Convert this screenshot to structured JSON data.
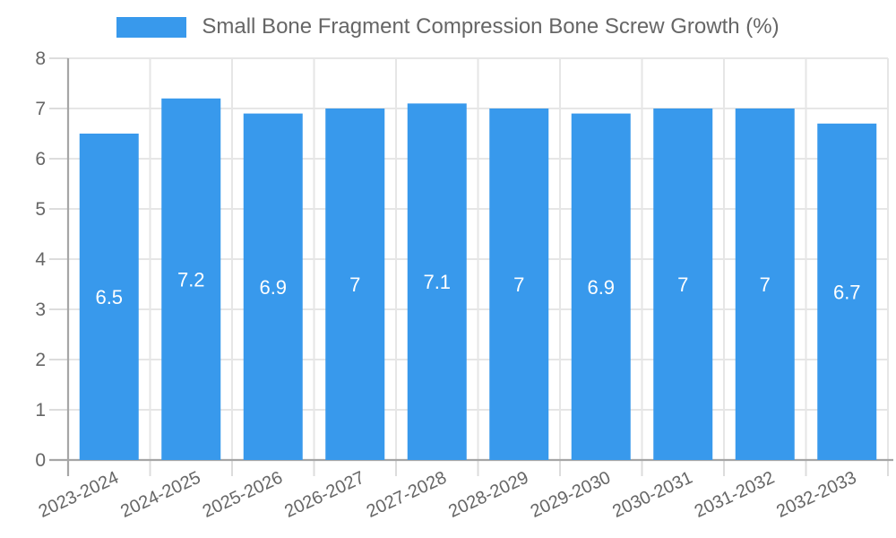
{
  "chart_data": {
    "type": "bar",
    "title": "Small Bone Fragment Compression Bone Screw Growth (%)",
    "legend_position": "top",
    "legend_entries": [
      "Small Bone Fragment Compression Bone Screw Growth (%)"
    ],
    "categories": [
      "2023-2024",
      "2024-2025",
      "2025-2026",
      "2026-2027",
      "2027-2028",
      "2028-2029",
      "2029-2030",
      "2030-2031",
      "2031-2032",
      "2032-2033"
    ],
    "values": [
      6.5,
      7.2,
      6.9,
      7,
      7.1,
      7,
      6.9,
      7,
      7,
      6.7
    ],
    "value_labels": [
      "6.5",
      "7.2",
      "6.9",
      "7",
      "7.1",
      "7",
      "6.9",
      "7",
      "7",
      "6.7"
    ],
    "xlabel": "",
    "ylabel": "",
    "ylim": [
      0,
      8
    ],
    "yticks": [
      0,
      1,
      2,
      3,
      4,
      5,
      6,
      7,
      8
    ],
    "grid": true,
    "colors": {
      "bar": "#3899ec",
      "grid": "#e6e6e6",
      "axis": "#a6a6a6",
      "tick": "#dcdcdc",
      "axis_label": "#666666",
      "value_label": "#ffffff",
      "legend_text": "#666666",
      "background": "#ffffff"
    }
  }
}
